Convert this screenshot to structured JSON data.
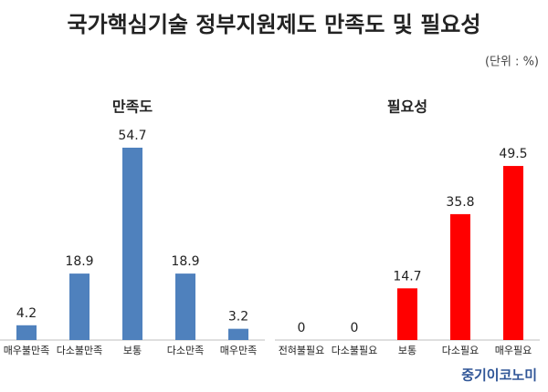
{
  "title": "국가핵심기술 정부지원제도 만족도 및 필요성",
  "unit_note": "(단위 : %)",
  "source": "중기이코노미",
  "chart_data": [
    {
      "type": "bar",
      "title": "만족도",
      "categories": [
        "매우불만족",
        "다소불만족",
        "보통",
        "다소만족",
        "매우만족"
      ],
      "values": [
        4.2,
        18.9,
        54.7,
        18.9,
        3.2
      ],
      "color": "#4f81bd"
    },
    {
      "type": "bar",
      "title": "필요성",
      "categories": [
        "전혀불필요",
        "다소불필요",
        "보통",
        "다소필요",
        "매우필요"
      ],
      "values": [
        0,
        0,
        14.7,
        35.8,
        49.5
      ],
      "color": "#ff0000"
    }
  ]
}
